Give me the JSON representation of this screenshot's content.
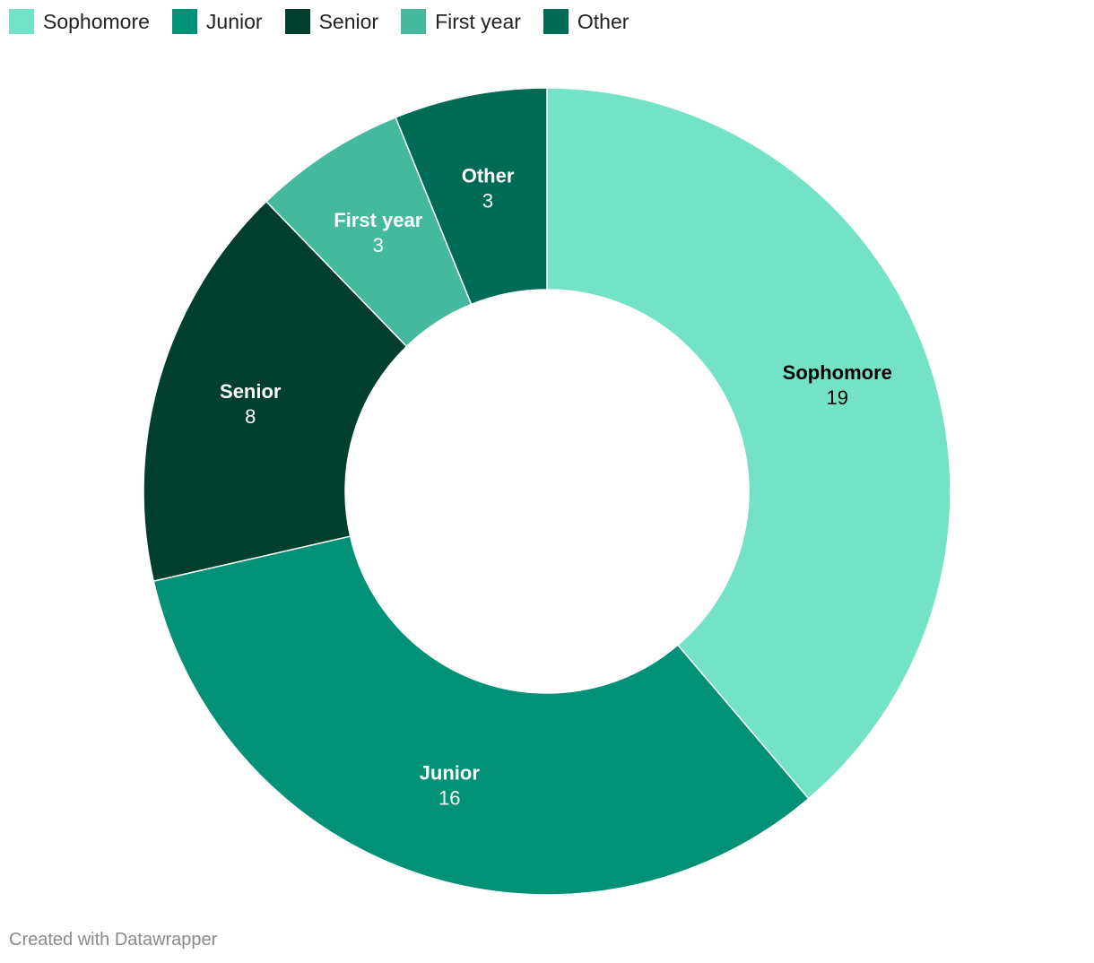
{
  "chart_data": {
    "type": "pie",
    "variant": "donut",
    "categories": [
      "Sophomore",
      "Junior",
      "Senior",
      "First year",
      "Other"
    ],
    "values": [
      19,
      16,
      8,
      3,
      3
    ],
    "colors": [
      "#74e3c5",
      "#009176",
      "#003f2d",
      "#45b99c",
      "#006b54"
    ],
    "label_colors": [
      "#000000",
      "#ffffff",
      "#ffffff",
      "#ffffff",
      "#ffffff"
    ],
    "legend_position": "top-left",
    "title": ""
  },
  "footer": {
    "credit": "Created with Datawrapper"
  }
}
